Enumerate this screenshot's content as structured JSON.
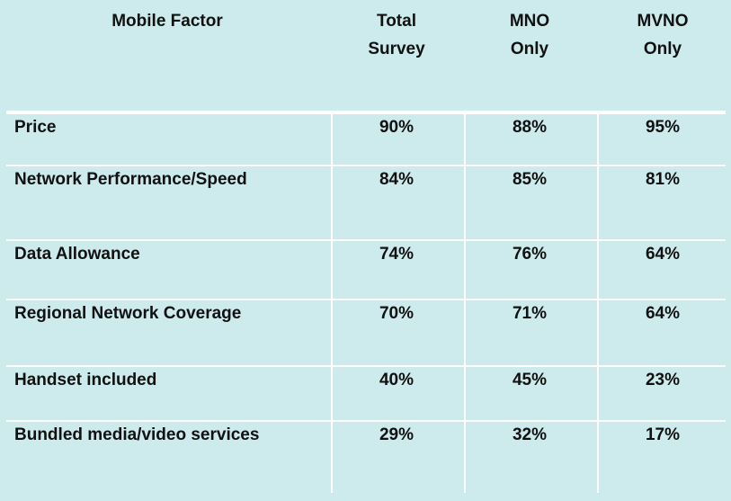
{
  "chart_data": {
    "type": "table",
    "columns": [
      "Mobile Factor",
      "Total\nSurvey",
      "MNO\nOnly",
      "MVNO\nOnly"
    ],
    "rows": [
      {
        "factor": "Price",
        "values": [
          "90%",
          "88%",
          "95%"
        ]
      },
      {
        "factor": "Network Performance/Speed",
        "values": [
          "84%",
          "85%",
          "81%"
        ]
      },
      {
        "factor": "Data Allowance",
        "values": [
          "74%",
          "76%",
          "64%"
        ]
      },
      {
        "factor": "Regional Network Coverage",
        "values": [
          "70%",
          "71%",
          "64%"
        ]
      },
      {
        "factor": "Handset included",
        "values": [
          "40%",
          "45%",
          "23%"
        ]
      },
      {
        "factor": "Bundled media/video services",
        "values": [
          "29%",
          "32%",
          "17%"
        ]
      }
    ],
    "colors": {
      "background": "#cdeaec",
      "gridlines": "#ffffff",
      "text": "#111111"
    }
  }
}
